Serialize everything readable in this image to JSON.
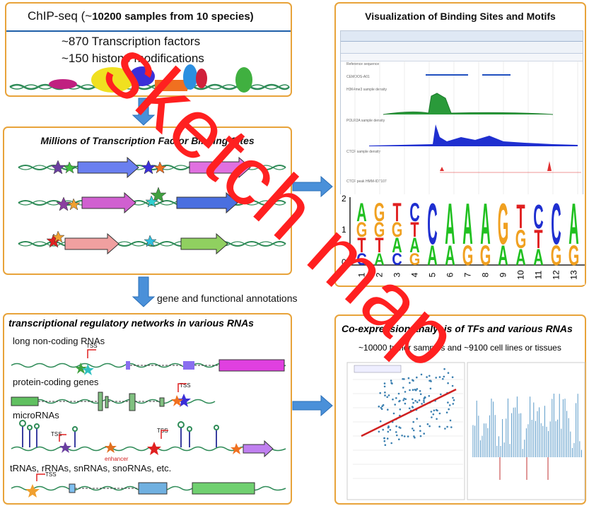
{
  "chipseq": {
    "title_prefix": "ChIP-seq (",
    "title_tilde": "~",
    "title_bold": "10200 samples from 10 species)",
    "line1": "~870 Transcription factors",
    "line2": "~150 histone modifications"
  },
  "binding_sites": {
    "title": "Millions of Transcription Factor Binding Sites"
  },
  "flow": {
    "annotation_label": "gene and functional annotations"
  },
  "visualization": {
    "title": "Visualization of  Binding Sites and  Motifs",
    "track_labels": [
      "Reference sequence",
      "CEMOOS-A01",
      "H3K4me3 sample density",
      "POLR2A sample density",
      "CTCF sample density",
      "CTCF peak HMM-ID7107"
    ]
  },
  "motif": {
    "y_ticks": [
      "2",
      "1",
      "0"
    ],
    "positions": [
      "1",
      "2",
      "3",
      "4",
      "5",
      "6",
      "7",
      "8",
      "9",
      "10",
      "11",
      "12",
      "13"
    ],
    "columns": [
      [
        "A",
        "G",
        "T",
        "C"
      ],
      [
        "G",
        "G",
        "T",
        "A"
      ],
      [
        "T",
        "G",
        "A",
        "C"
      ],
      [
        "C",
        "T",
        "A",
        "G"
      ],
      [
        "C",
        "A"
      ],
      [
        "A",
        "A"
      ],
      [
        "A",
        "G"
      ],
      [
        "A",
        "G"
      ],
      [
        "G",
        "A"
      ],
      [
        "T",
        "G",
        "A"
      ],
      [
        "C",
        "T",
        "A"
      ],
      [
        "C",
        "G"
      ],
      [
        "A",
        "G"
      ]
    ]
  },
  "networks": {
    "title": "transcriptional regulatory networks in various RNAs",
    "lncrna": "long non-coding RNAs",
    "protein": "protein-coding genes",
    "microrna": "microRNAs",
    "other": "tRNAs, rRNAs, snRNAs, snoRNAs, etc.",
    "tss": "TSS",
    "enhancer": "enhancer"
  },
  "coexpression": {
    "title": "Co-expression analysis of TFs and various RNAs",
    "subtitle_tilde": "~",
    "subtitle": "10000 tumor samples and  ~9100 cell lines or tissues"
  },
  "watermark": {
    "text": "sketch map"
  },
  "colors": {
    "panel_border": "#e8a33a",
    "arrow_blue": "#4a90d9",
    "watermark_red": "#ff2020",
    "dna_green": "#2e8b57"
  }
}
